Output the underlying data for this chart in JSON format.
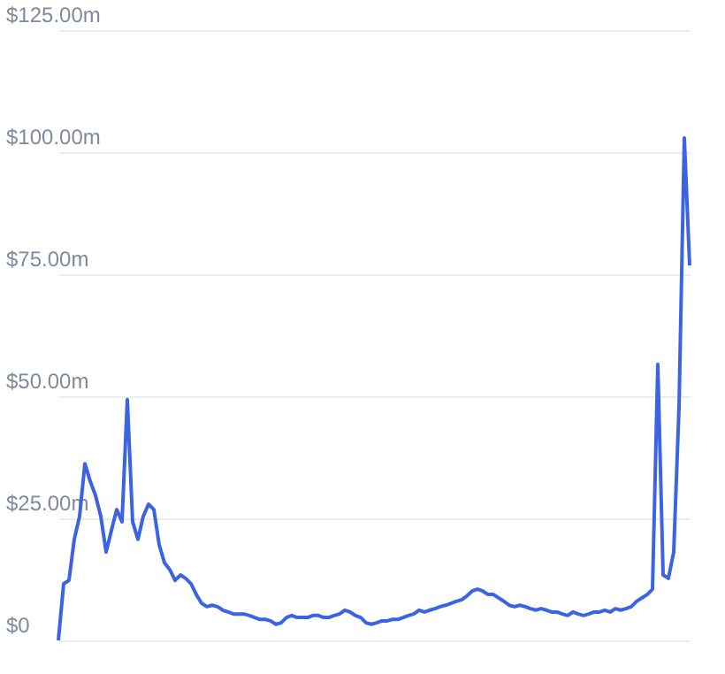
{
  "chart_data": {
    "type": "line",
    "categories": [
      null,
      null,
      null,
      null,
      null,
      null,
      null,
      null,
      null,
      null,
      null,
      null,
      null,
      null,
      null,
      null,
      null,
      null,
      null,
      null,
      null,
      null,
      null,
      null,
      null,
      null,
      null,
      null,
      null,
      null,
      null,
      null,
      null,
      null,
      null,
      null,
      null,
      null,
      null,
      null,
      null,
      null,
      null,
      null,
      null,
      null,
      null,
      null,
      null,
      null,
      null,
      null,
      null,
      null,
      null,
      null,
      null,
      null,
      null,
      null,
      null,
      null,
      null,
      null,
      null,
      null,
      null,
      null,
      null,
      null,
      null,
      null,
      null,
      null,
      null,
      null,
      null,
      null,
      null,
      null,
      null,
      null,
      null,
      null,
      null,
      null,
      null,
      null,
      null,
      null,
      null,
      null,
      null,
      null,
      null,
      null,
      null,
      null,
      null,
      null,
      null,
      null,
      null,
      null,
      null,
      null,
      null,
      null,
      null,
      null,
      null,
      null,
      null,
      null,
      null,
      null,
      null,
      null,
      null,
      null
    ],
    "series": [
      {
        "color": "#3b63e3",
        "values": [
          0,
          11.6,
          12.3,
          20.7,
          25.4,
          36.2,
          32.6,
          29.7,
          25.4,
          18.1,
          22.5,
          26.8,
          24.3,
          49.3,
          24.3,
          20.7,
          25.4,
          27.9,
          26.8,
          19.6,
          15.9,
          14.5,
          12.3,
          13.4,
          12.7,
          11.6,
          9.4,
          7.6,
          6.9,
          7.2,
          6.9,
          6.2,
          5.8,
          5.4,
          5.4,
          5.4,
          5.1,
          4.7,
          4.3,
          4.3,
          4.0,
          3.3,
          3.6,
          4.7,
          5.1,
          4.7,
          4.7,
          4.7,
          5.1,
          5.1,
          4.7,
          4.7,
          5.1,
          5.4,
          6.2,
          5.8,
          5.1,
          4.7,
          3.6,
          3.3,
          3.6,
          4.0,
          4.0,
          4.3,
          4.3,
          4.7,
          5.1,
          5.4,
          6.2,
          5.8,
          6.2,
          6.5,
          6.9,
          7.2,
          7.6,
          8.0,
          8.3,
          9.1,
          10.1,
          10.5,
          10.1,
          9.4,
          9.4,
          8.7,
          8.0,
          7.2,
          6.9,
          7.2,
          6.9,
          6.5,
          6.2,
          6.5,
          6.2,
          5.8,
          5.8,
          5.4,
          5.1,
          5.8,
          5.4,
          5.1,
          5.4,
          5.8,
          5.8,
          6.2,
          5.8,
          6.5,
          6.2,
          6.5,
          6.9,
          8.0,
          8.7,
          9.4,
          10.5,
          56.5,
          13.4,
          12.7,
          18.1,
          47.8,
          102.9,
          76.8
        ]
      }
    ],
    "ylim": [
      0,
      125
    ],
    "yticks": [
      {
        "value": 0,
        "label": "$0"
      },
      {
        "value": 25,
        "label": "$25.00m"
      },
      {
        "value": 50,
        "label": "$50.00m"
      },
      {
        "value": 75,
        "label": "$75.00m"
      },
      {
        "value": 100,
        "label": "$100.00m"
      },
      {
        "value": 125,
        "label": "$125.00m"
      }
    ],
    "grid": "y",
    "tick_labels": "y",
    "marker": "none",
    "line_style": "solid"
  }
}
